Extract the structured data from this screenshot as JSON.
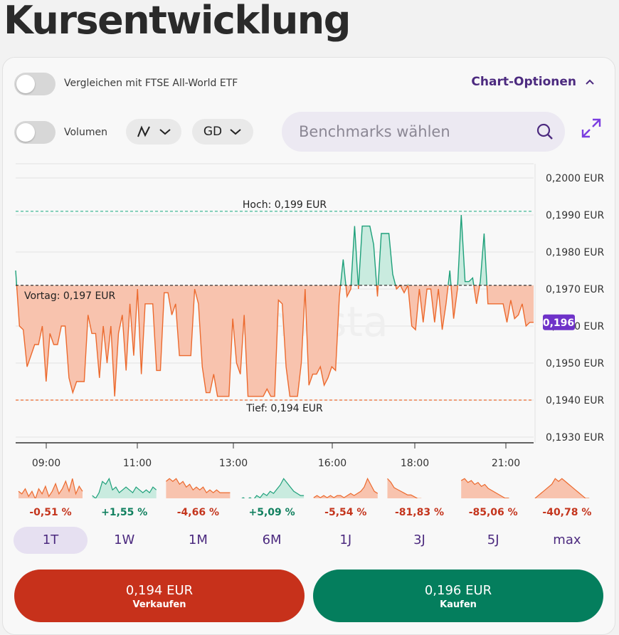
{
  "page": {
    "title": "Kursentwicklung"
  },
  "controls": {
    "compare_label": "Vergleichen mit FTSE All-World ETF",
    "chart_options_label": "Chart-Optionen",
    "volume_label": "Volumen",
    "indicator_label": "GD",
    "benchmark_placeholder": "Benchmarks wählen"
  },
  "chart_data": {
    "type": "area",
    "y_unit": "EUR",
    "y_range": [
      0.193,
      0.2
    ],
    "y_ticks": [
      "0,2000 EUR",
      "0,1990 EUR",
      "0,1980 EUR",
      "0,1970 EUR",
      "0,1960 EUR",
      "0,1950 EUR",
      "0,1940 EUR",
      "0,1930 EUR"
    ],
    "x_ticks": [
      "09:00",
      "11:00",
      "13:00",
      "16:00",
      "18:00",
      "21:00"
    ],
    "reference": {
      "label": "Vortag: 0,197 EUR",
      "value": 0.1971
    },
    "high": {
      "label": "Hoch: 0,199 EUR",
      "value": 0.1991
    },
    "low": {
      "label": "Tief: 0,194 EUR",
      "value": 0.194
    },
    "current_badge": "0,196",
    "watermark": "onvista",
    "colors": {
      "up": "#1ea07a",
      "down": "#ec6a2e",
      "up_fill": "#c9ebdf",
      "down_fill": "#f8c3ae",
      "badge": "#6f33c9"
    },
    "series": [
      0.1975,
      0.196,
      0.1959,
      0.1949,
      0.1952,
      0.1955,
      0.1955,
      0.196,
      0.1945,
      0.1958,
      0.1955,
      0.1955,
      0.196,
      0.196,
      0.1946,
      0.1942,
      0.1945,
      0.1945,
      0.1945,
      0.1963,
      0.1958,
      0.1958,
      0.1946,
      0.196,
      0.195,
      0.196,
      0.1941,
      0.1958,
      0.1963,
      0.1948,
      0.1966,
      0.1952,
      0.197,
      0.1947,
      0.1966,
      0.1966,
      0.1966,
      0.1948,
      0.1948,
      0.1969,
      0.1969,
      0.1963,
      0.1966,
      0.1952,
      0.1952,
      0.1952,
      0.1952,
      0.197,
      0.1966,
      0.1949,
      0.1942,
      0.1942,
      0.1947,
      0.1941,
      0.1941,
      0.1941,
      0.1941,
      0.1962,
      0.195,
      0.1947,
      0.1963,
      0.1941,
      0.1941,
      0.1941,
      0.1941,
      0.1941,
      0.1943,
      0.1941,
      0.1941,
      0.1967,
      0.1966,
      0.1949,
      0.1941,
      0.1941,
      0.1941,
      0.195,
      0.197,
      0.1944,
      0.1947,
      0.1947,
      0.1949,
      0.1944,
      0.1946,
      0.1949,
      0.1948,
      0.1968,
      0.1978,
      0.1968,
      0.197,
      0.1987,
      0.197,
      0.1987,
      0.1987,
      0.1987,
      0.1982,
      0.1968,
      0.1985,
      0.1985,
      0.1985,
      0.1974,
      0.197,
      0.1971,
      0.1969,
      0.1971,
      0.196,
      0.1959,
      0.197,
      0.1961,
      0.197,
      0.197,
      0.1961,
      0.197,
      0.1959,
      0.1966,
      0.1975,
      0.1962,
      0.197,
      0.199,
      0.1972,
      0.1972,
      0.1973,
      0.1966,
      0.1972,
      0.1985,
      0.1966,
      0.1966,
      0.1966,
      0.1966,
      0.1966,
      0.1961,
      0.1967,
      0.1962,
      0.1963,
      0.1966,
      0.196,
      0.1961,
      0.1961
    ]
  },
  "ranges": [
    {
      "label": "1T",
      "change": "-0,51 %",
      "trend": "down",
      "active": true,
      "spark": [
        5,
        4,
        6,
        3,
        5,
        2,
        6,
        4,
        7,
        3,
        5,
        8,
        4,
        6,
        9,
        5,
        10,
        4,
        7,
        5
      ]
    },
    {
      "label": "1W",
      "change": "+1,55 %",
      "trend": "up",
      "active": false,
      "spark": [
        3,
        2,
        4,
        8,
        7,
        9,
        5,
        6,
        4,
        5,
        6,
        5,
        4,
        6,
        5,
        4,
        5,
        4,
        6,
        5
      ]
    },
    {
      "label": "1M",
      "change": "-4,66 %",
      "trend": "down",
      "active": false,
      "spark": [
        8,
        9,
        8,
        9,
        7,
        8,
        6,
        7,
        5,
        6,
        5,
        6,
        4,
        5,
        4,
        5,
        4,
        4,
        4,
        4
      ]
    },
    {
      "label": "6M",
      "change": "+5,09 %",
      "trend": "up",
      "active": false,
      "spark": [
        2,
        3,
        2,
        3,
        2,
        4,
        3,
        5,
        4,
        6,
        5,
        7,
        9,
        12,
        10,
        8,
        6,
        5,
        4,
        4
      ]
    },
    {
      "label": "1J",
      "change": "-5,54 %",
      "trend": "down",
      "active": false,
      "spark": [
        3,
        4,
        3,
        4,
        3,
        4,
        3,
        4,
        4,
        3,
        4,
        5,
        4,
        5,
        6,
        8,
        12,
        9,
        6,
        5
      ]
    },
    {
      "label": "3J",
      "change": "-81,83 %",
      "trend": "down",
      "active": false,
      "spark": [
        14,
        12,
        9,
        8,
        7,
        6,
        5,
        5,
        4,
        3,
        3,
        2,
        2,
        2,
        2,
        1,
        1,
        1,
        1,
        1
      ]
    },
    {
      "label": "5J",
      "change": "-85,06 %",
      "trend": "down",
      "active": false,
      "spark": [
        12,
        13,
        11,
        12,
        10,
        11,
        9,
        10,
        8,
        7,
        6,
        5,
        4,
        3,
        3,
        2,
        2,
        1,
        1,
        1
      ]
    },
    {
      "label": "max",
      "change": "-40,78 %",
      "trend": "down",
      "active": false,
      "spark": [
        2,
        3,
        4,
        5,
        6,
        7,
        9,
        8,
        9,
        8,
        7,
        6,
        5,
        4,
        3,
        2,
        2,
        1,
        1,
        1
      ]
    }
  ],
  "trade": {
    "sell_price": "0,194 EUR",
    "sell_label": "Verkaufen",
    "buy_price": "0,196 EUR",
    "buy_label": "Kaufen",
    "sell_color": "#c7311b",
    "buy_color": "#047e5d"
  }
}
